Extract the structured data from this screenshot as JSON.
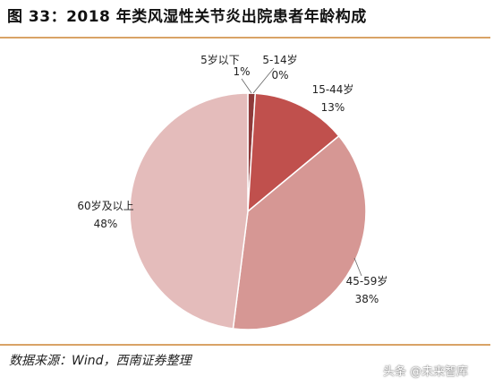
{
  "header": {
    "title": "图 33：2018 年类风湿性关节炎出院患者年龄构成"
  },
  "footer": {
    "source": "数据来源：Wind，西南证券整理",
    "watermark": "头条 @未来智库"
  },
  "chart_data": {
    "type": "pie",
    "categories": [
      "5岁以下",
      "5-14岁",
      "15-44岁",
      "45-59岁",
      "60岁及以上"
    ],
    "values": [
      1,
      0,
      13,
      38,
      48
    ],
    "value_labels": [
      "1%",
      "0%",
      "13%",
      "38%",
      "48%"
    ],
    "colors": [
      "#8e3a3a",
      "#a94444",
      "#c0504d",
      "#d69794",
      "#e4bcbb"
    ],
    "start_angle_deg": 0,
    "direction": "clockwise"
  }
}
